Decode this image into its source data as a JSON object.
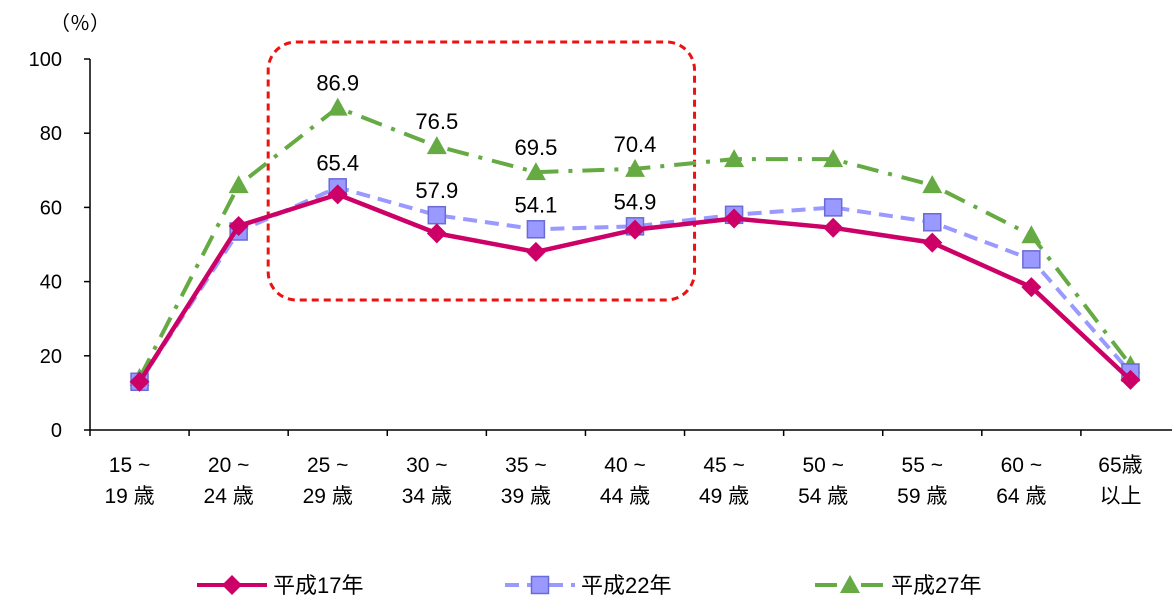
{
  "chart_data": {
    "type": "line",
    "unit_label": "（％）",
    "categories": [
      [
        "15 ~",
        "19 歳"
      ],
      [
        "20 ~",
        "24 歳"
      ],
      [
        "25 ~",
        "29 歳"
      ],
      [
        "30 ~",
        "34 歳"
      ],
      [
        "35 ~",
        "39 歳"
      ],
      [
        "40 ~",
        "44 歳"
      ],
      [
        "45 ~",
        "49 歳"
      ],
      [
        "50 ~",
        "54 歳"
      ],
      [
        "55 ~",
        "59 歳"
      ],
      [
        "60 ~",
        "64 歳"
      ],
      [
        "65歳",
        "以上"
      ]
    ],
    "ylim": [
      0,
      100
    ],
    "yticks": [
      0,
      20,
      40,
      60,
      80,
      100
    ],
    "series": [
      {
        "name": "平成17年",
        "color": "#cc0066",
        "marker": "diamond",
        "dash": "solid",
        "values": [
          13,
          55,
          63.5,
          53,
          48,
          54,
          57,
          54.5,
          50.5,
          38.5,
          13.5
        ]
      },
      {
        "name": "平成22年",
        "color": "#9999ff",
        "marker": "square",
        "dash": "dashed",
        "values": [
          13,
          53.5,
          65.4,
          57.9,
          54.1,
          54.9,
          58,
          60,
          56,
          46,
          15.5
        ]
      },
      {
        "name": "平成27年",
        "color": "#66aa44",
        "marker": "triangle",
        "dash": "dashdot",
        "values": [
          14,
          66,
          86.9,
          76.5,
          69.5,
          70.4,
          73,
          73,
          66,
          52.5,
          17.5
        ]
      }
    ],
    "data_labels": [
      {
        "series": 2,
        "index": 2,
        "text": "86.9"
      },
      {
        "series": 2,
        "index": 3,
        "text": "76.5"
      },
      {
        "series": 2,
        "index": 4,
        "text": "69.5"
      },
      {
        "series": 2,
        "index": 5,
        "text": "70.4"
      },
      {
        "series": 1,
        "index": 2,
        "text": "65.4"
      },
      {
        "series": 1,
        "index": 3,
        "text": "57.9"
      },
      {
        "series": 1,
        "index": 4,
        "text": "54.1"
      },
      {
        "series": 1,
        "index": 5,
        "text": "54.9"
      }
    ],
    "highlight": {
      "from_index": 2,
      "to_index": 5,
      "color": "#ee1111"
    },
    "grid": false,
    "legend_position": "bottom"
  }
}
